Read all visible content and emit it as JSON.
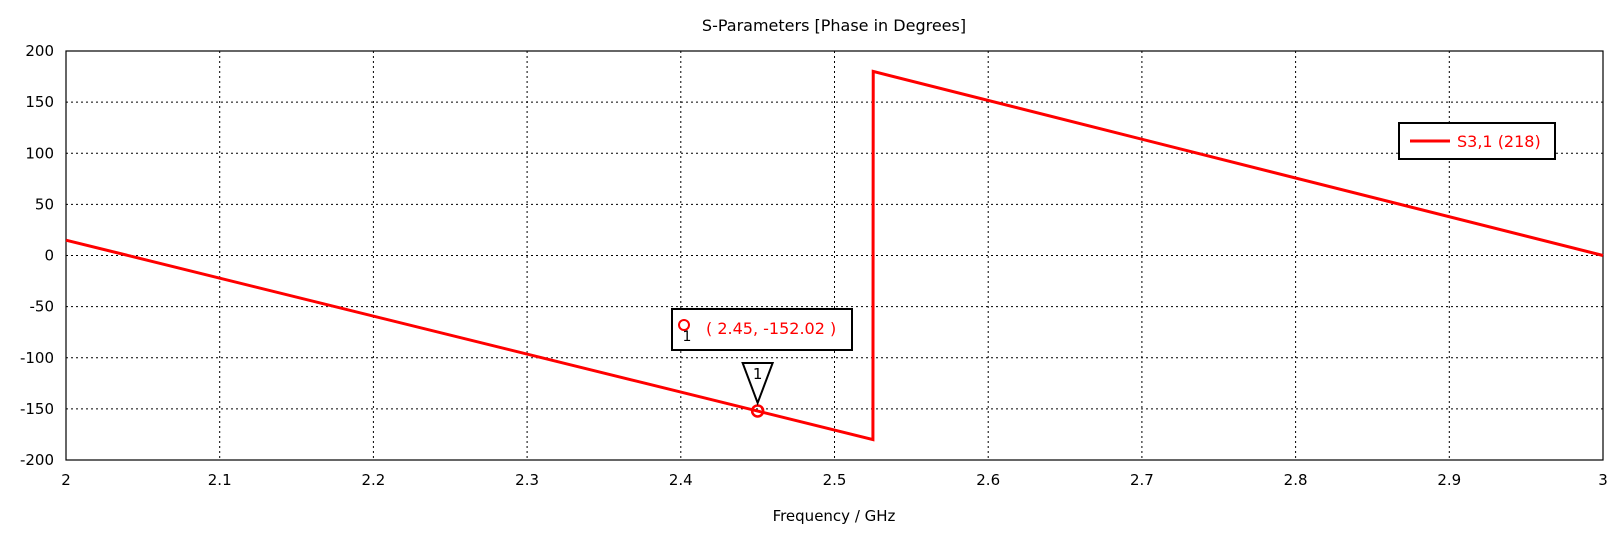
{
  "chart_data": {
    "type": "line",
    "title": "S-Parameters [Phase in Degrees]",
    "xlabel": "Frequency / GHz",
    "ylabel": "",
    "xlim": [
      2,
      3
    ],
    "ylim": [
      -200,
      200
    ],
    "x_ticks": [
      2,
      2.1,
      2.2,
      2.3,
      2.4,
      2.5,
      2.6,
      2.7,
      2.8,
      2.9,
      3
    ],
    "x_tick_labels": [
      "2",
      "2.1",
      "2.2",
      "2.3",
      "2.4",
      "2.5",
      "2.6",
      "2.7",
      "2.8",
      "2.9",
      "3"
    ],
    "y_ticks": [
      -200,
      -150,
      -100,
      -50,
      0,
      50,
      100,
      150,
      200
    ],
    "y_tick_labels": [
      "-200",
      "-150",
      "-100",
      "-50",
      "0",
      "50",
      "100",
      "150",
      "200"
    ],
    "grid": true,
    "legend_position": "top-right",
    "series": [
      {
        "name": "S3,1 (218)",
        "color": "#ff0000",
        "points": [
          [
            2.0,
            15
          ],
          [
            2.525,
            -180
          ],
          [
            2.5252,
            180
          ],
          [
            3.0,
            0
          ]
        ]
      }
    ],
    "marker": {
      "id": "1",
      "x": 2.45,
      "y": -152.02,
      "label": "( 2.45, -152.02 )",
      "color": "#ff0000"
    }
  }
}
